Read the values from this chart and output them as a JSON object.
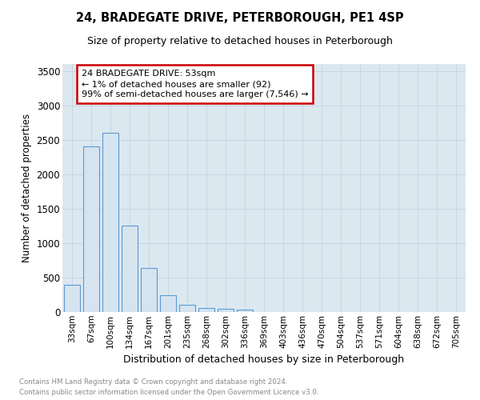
{
  "title": "24, BRADEGATE DRIVE, PETERBOROUGH, PE1 4SP",
  "subtitle": "Size of property relative to detached houses in Peterborough",
  "xlabel": "Distribution of detached houses by size in Peterborough",
  "ylabel": "Number of detached properties",
  "categories": [
    "33sqm",
    "67sqm",
    "100sqm",
    "134sqm",
    "167sqm",
    "201sqm",
    "235sqm",
    "268sqm",
    "302sqm",
    "336sqm",
    "369sqm",
    "403sqm",
    "436sqm",
    "470sqm",
    "504sqm",
    "537sqm",
    "571sqm",
    "604sqm",
    "638sqm",
    "672sqm",
    "705sqm"
  ],
  "values": [
    400,
    2400,
    2600,
    1250,
    640,
    240,
    110,
    60,
    50,
    30,
    0,
    0,
    0,
    0,
    0,
    0,
    0,
    0,
    0,
    0,
    0
  ],
  "bar_color": "#d6e4f0",
  "bar_edge_color": "#5b9bd5",
  "annotation_line1": "24 BRADEGATE DRIVE: 53sqm",
  "annotation_line2": "← 1% of detached houses are smaller (92)",
  "annotation_line3": "99% of semi-detached houses are larger (7,546) →",
  "annotation_box_color": "#cc0000",
  "annotation_fill_color": "#ffffff",
  "ylim": [
    0,
    3600
  ],
  "yticks": [
    0,
    500,
    1000,
    1500,
    2000,
    2500,
    3000,
    3500
  ],
  "grid_color": "#c8d4df",
  "bg_color": "#dce8f0",
  "footer_line1": "Contains HM Land Registry data © Crown copyright and database right 2024.",
  "footer_line2": "Contains public sector information licensed under the Open Government Licence v3.0.",
  "title_fontsize": 10.5,
  "subtitle_fontsize": 9
}
